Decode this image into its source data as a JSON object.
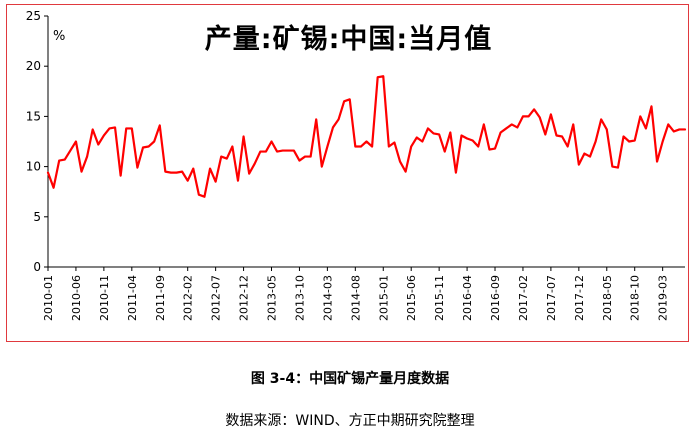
{
  "chart_data": {
    "type": "line",
    "title": "产量:矿锡:中国:当月值",
    "unit": "%",
    "ylim": [
      0,
      25
    ],
    "yticks": [
      0,
      5,
      10,
      15,
      20,
      25
    ],
    "x_tick_labels": [
      "2010-01",
      "2010-06",
      "2010-11",
      "2011-04",
      "2011-09",
      "2012-02",
      "2012-07",
      "2012-12",
      "2013-05",
      "2013-10",
      "2014-03",
      "2014-08",
      "2015-01",
      "2015-06",
      "2015-11",
      "2016-04",
      "2016-09",
      "2017-02",
      "2017-07",
      "2017-12",
      "2018-05",
      "2018-10",
      "2019-03"
    ],
    "x_start": "2010-01",
    "grid": false,
    "legend": "none",
    "line_color": "#ff0000",
    "series": [
      {
        "values": [
          9.4,
          7.9,
          10.6,
          10.7,
          11.6,
          12.5,
          9.5,
          11.0,
          13.7,
          12.2,
          13.1,
          13.8,
          13.9,
          9.1,
          13.8,
          13.8,
          9.9,
          11.9,
          12.0,
          12.5,
          14.1,
          9.5,
          9.4,
          9.4,
          9.5,
          8.6,
          9.8,
          7.2,
          7.0,
          9.8,
          8.5,
          11.0,
          10.8,
          12.0,
          8.6,
          13.0,
          9.3,
          10.3,
          11.5,
          11.5,
          12.5,
          11.5,
          11.6,
          11.6,
          11.6,
          10.6,
          11.0,
          11.0,
          14.7,
          10.0,
          12.0,
          13.9,
          14.7,
          16.5,
          16.7,
          12.0,
          12.0,
          12.5,
          12.0,
          18.9,
          19.0,
          12.0,
          12.4,
          10.5,
          9.5,
          12.0,
          12.9,
          12.5,
          13.8,
          13.3,
          13.2,
          11.5,
          13.4,
          9.4,
          13.1,
          12.8,
          12.6,
          12.0,
          14.2,
          11.7,
          11.8,
          13.4,
          13.8,
          14.2,
          13.9,
          15.0,
          15.0,
          15.7,
          14.9,
          13.2,
          15.2,
          13.1,
          13.0,
          12.0,
          14.2,
          10.2,
          11.3,
          11.0,
          12.5,
          14.7,
          13.7,
          10.0,
          9.9,
          13.0,
          12.5,
          12.6,
          15.0,
          13.8,
          16.0,
          10.5,
          12.5,
          14.2,
          13.5,
          13.7,
          13.7
        ]
      }
    ]
  },
  "caption": "图 3-4：中国矿锡产量月度数据",
  "source": "数据来源：WIND、方正中期研究院整理"
}
